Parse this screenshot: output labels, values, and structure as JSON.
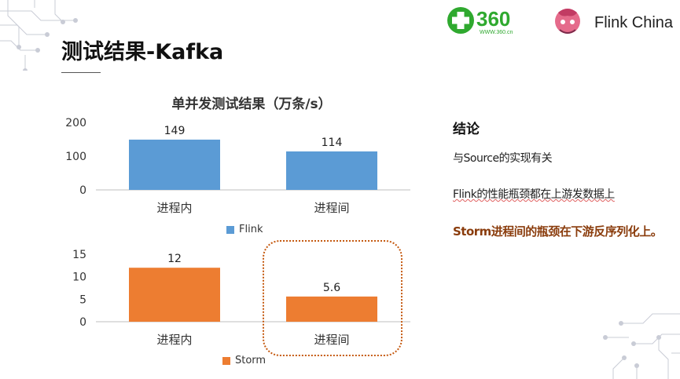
{
  "slide": {
    "title": "测试结果-Kafka"
  },
  "logos": {
    "brand_360_text": "360",
    "brand_360_url_text": "WWW.360.cn",
    "flink_china_text": "Flink China",
    "brand_360_color": "#2fa92f",
    "brand_360_text_color": "#1f7ec9",
    "flink_icon": "squirrel-icon"
  },
  "colors": {
    "flink": "#5b9bd5",
    "storm": "#ed7d31",
    "highlight_border": "#c55a11",
    "emphasis_text": "#8a3c0c"
  },
  "conclusion": {
    "heading": "结论",
    "line1": "与Source的实现有关",
    "line2": "Flink的性能瓶颈都在上游发数据上",
    "line3": "Storm进程间的瓶颈在下游反序列化上。"
  },
  "chart_data": [
    {
      "type": "bar",
      "title": "单并发测试结果（万条/s）",
      "categories": [
        "进程内",
        "进程间"
      ],
      "series": [
        {
          "name": "Flink",
          "values": [
            149,
            114
          ],
          "color": "#5b9bd5"
        }
      ],
      "ylim": [
        0,
        200
      ],
      "yticks": [
        0,
        100,
        200
      ],
      "data_labels": [
        "149",
        "114"
      ],
      "legend": "bottom",
      "grid": false
    },
    {
      "type": "bar",
      "title": "",
      "categories": [
        "进程内",
        "进程间"
      ],
      "series": [
        {
          "name": "Storm",
          "values": [
            12,
            5.6
          ],
          "color": "#ed7d31"
        }
      ],
      "ylim": [
        0,
        15
      ],
      "yticks": [
        0,
        5,
        10,
        15
      ],
      "data_labels": [
        "12",
        "5.6"
      ],
      "legend": "bottom",
      "grid": false
    }
  ]
}
